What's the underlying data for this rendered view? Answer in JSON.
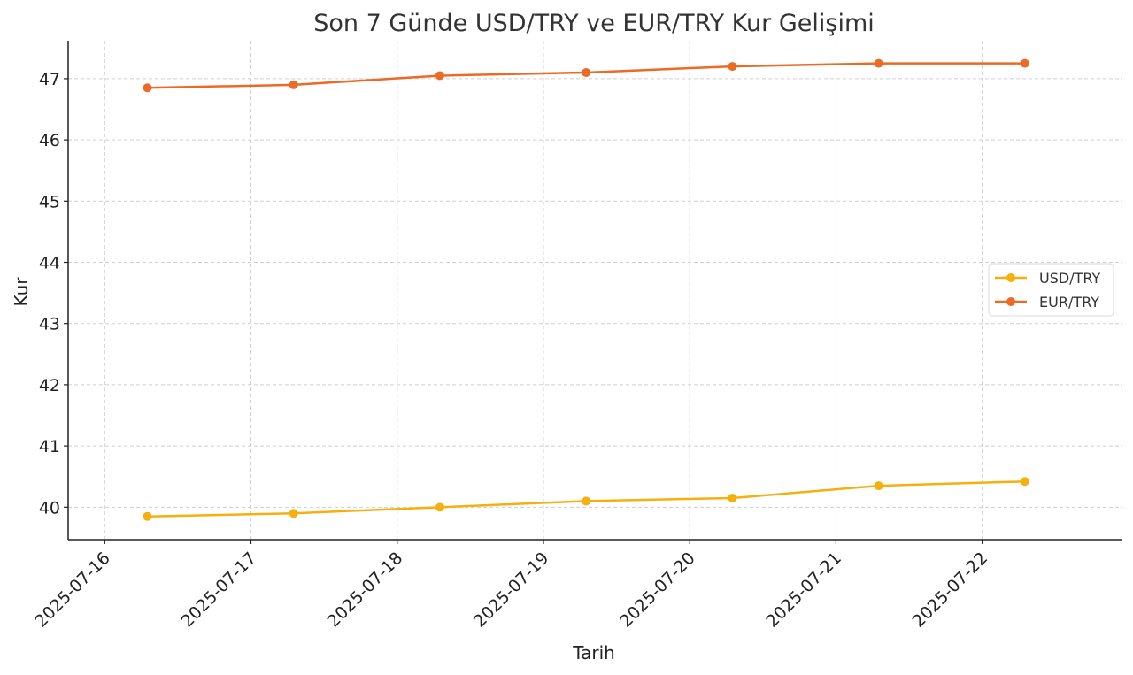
{
  "chart_data": {
    "type": "line",
    "title": "Son 7 Günde USD/TRY ve EUR/TRY Kur Gelişimi",
    "xlabel": "Tarih",
    "ylabel": "Kur",
    "x_ticks": [
      "2025-07-16",
      "2025-07-17",
      "2025-07-18",
      "2025-07-19",
      "2025-07-20",
      "2025-07-21",
      "2025-07-22"
    ],
    "x_range": [
      "2025-07-15 18:00",
      "2025-07-22 23:00"
    ],
    "y_ticks": [
      40,
      41,
      42,
      43,
      44,
      45,
      46,
      47
    ],
    "ylim": [
      39.47,
      47.62
    ],
    "grid": true,
    "legend_position": "center-right",
    "series": [
      {
        "name": "USD/TRY",
        "color": "#f5b00f",
        "points": [
          {
            "x": "2025-07-16 07:00",
            "y": 39.85
          },
          {
            "x": "2025-07-17 07:00",
            "y": 39.9
          },
          {
            "x": "2025-07-18 07:00",
            "y": 40.0
          },
          {
            "x": "2025-07-19 07:00",
            "y": 40.1
          },
          {
            "x": "2025-07-20 07:00",
            "y": 40.15
          },
          {
            "x": "2025-07-21 07:00",
            "y": 40.35
          },
          {
            "x": "2025-07-22 07:00",
            "y": 40.42
          }
        ]
      },
      {
        "name": "EUR/TRY",
        "color": "#eb6a25",
        "points": [
          {
            "x": "2025-07-16 07:00",
            "y": 46.85
          },
          {
            "x": "2025-07-17 07:00",
            "y": 46.9
          },
          {
            "x": "2025-07-18 07:00",
            "y": 47.05
          },
          {
            "x": "2025-07-19 07:00",
            "y": 47.1
          },
          {
            "x": "2025-07-20 07:00",
            "y": 47.2
          },
          {
            "x": "2025-07-21 07:00",
            "y": 47.25
          },
          {
            "x": "2025-07-22 07:00",
            "y": 47.25
          }
        ]
      }
    ]
  }
}
